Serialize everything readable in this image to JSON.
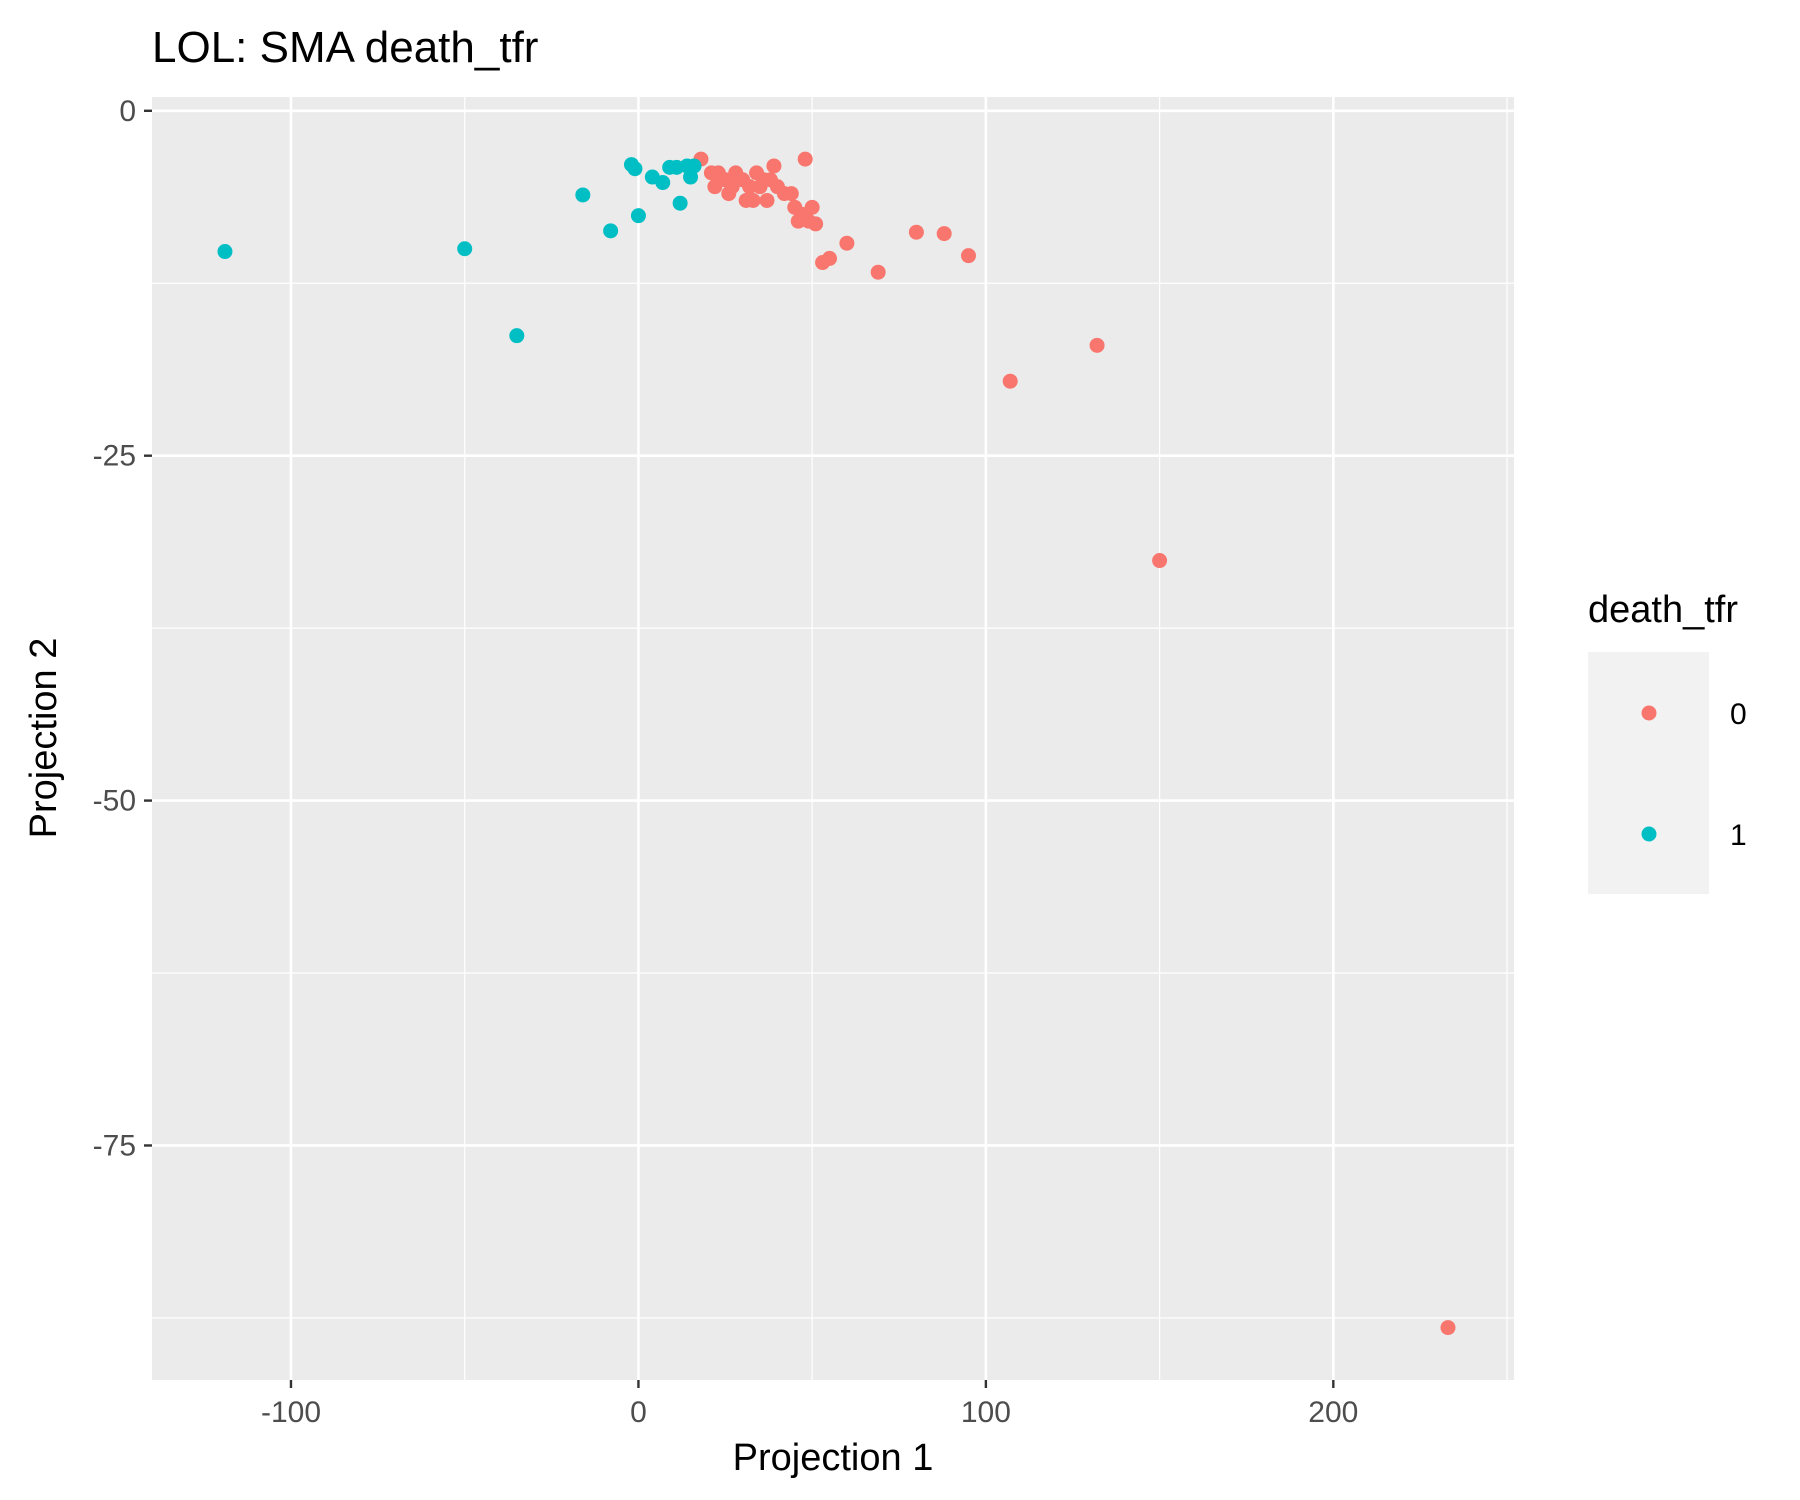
{
  "chart_data": {
    "type": "scatter",
    "title": "LOL: SMA death_tfr",
    "xlabel": "Projection 1",
    "ylabel": "Projection 2",
    "xlim": [
      -140,
      252
    ],
    "ylim": [
      -92,
      1
    ],
    "x_ticks": [
      -100,
      0,
      100,
      200
    ],
    "x_tick_labels": [
      "-100",
      "0",
      "100",
      "200"
    ],
    "y_ticks": [
      0,
      -25,
      -50,
      -75
    ],
    "y_tick_labels": [
      "0",
      "-25",
      "-50",
      "-75"
    ],
    "grid": true,
    "legend": {
      "title": "death_tfr",
      "position": "right"
    },
    "series": [
      {
        "name": "0",
        "color": "#F8766D",
        "points": [
          [
            18,
            -3.5
          ],
          [
            21,
            -4.5
          ],
          [
            23,
            -4.5
          ],
          [
            22,
            -5.5
          ],
          [
            25,
            -5
          ],
          [
            26,
            -6
          ],
          [
            28,
            -4.5
          ],
          [
            27,
            -5.5
          ],
          [
            30,
            -5
          ],
          [
            31,
            -6.5
          ],
          [
            32,
            -5.5
          ],
          [
            33,
            -6.5
          ],
          [
            34,
            -4.5
          ],
          [
            35,
            -5.5
          ],
          [
            36,
            -5
          ],
          [
            37,
            -6.5
          ],
          [
            38,
            -5
          ],
          [
            39,
            -4
          ],
          [
            40,
            -5.5
          ],
          [
            42,
            -6
          ],
          [
            44,
            -6
          ],
          [
            45,
            -7
          ],
          [
            46,
            -8
          ],
          [
            47,
            -7.5
          ],
          [
            48,
            -3.5
          ],
          [
            49,
            -8
          ],
          [
            50,
            -7
          ],
          [
            51,
            -8.2
          ],
          [
            53,
            -11
          ],
          [
            55,
            -10.7
          ],
          [
            60,
            -9.6
          ],
          [
            69,
            -11.7
          ],
          [
            80,
            -8.8
          ],
          [
            88,
            -8.9
          ],
          [
            95,
            -10.5
          ],
          [
            107,
            -19.6
          ],
          [
            132,
            -17
          ],
          [
            150,
            -32.6
          ],
          [
            233,
            -88.2
          ]
        ]
      },
      {
        "name": "1",
        "color": "#00BFC4",
        "points": [
          [
            -119,
            -10.2
          ],
          [
            -50,
            -10
          ],
          [
            -35,
            -16.3
          ],
          [
            -16,
            -6.1
          ],
          [
            -8,
            -8.7
          ],
          [
            0,
            -7.6
          ],
          [
            -2,
            -3.9
          ],
          [
            -1,
            -4.2
          ],
          [
            4,
            -4.8
          ],
          [
            7,
            -5.2
          ],
          [
            9,
            -4.1
          ],
          [
            11,
            -4.1
          ],
          [
            12,
            -6.7
          ],
          [
            14,
            -4
          ],
          [
            15,
            -4.8
          ],
          [
            16,
            -4
          ]
        ]
      }
    ]
  }
}
